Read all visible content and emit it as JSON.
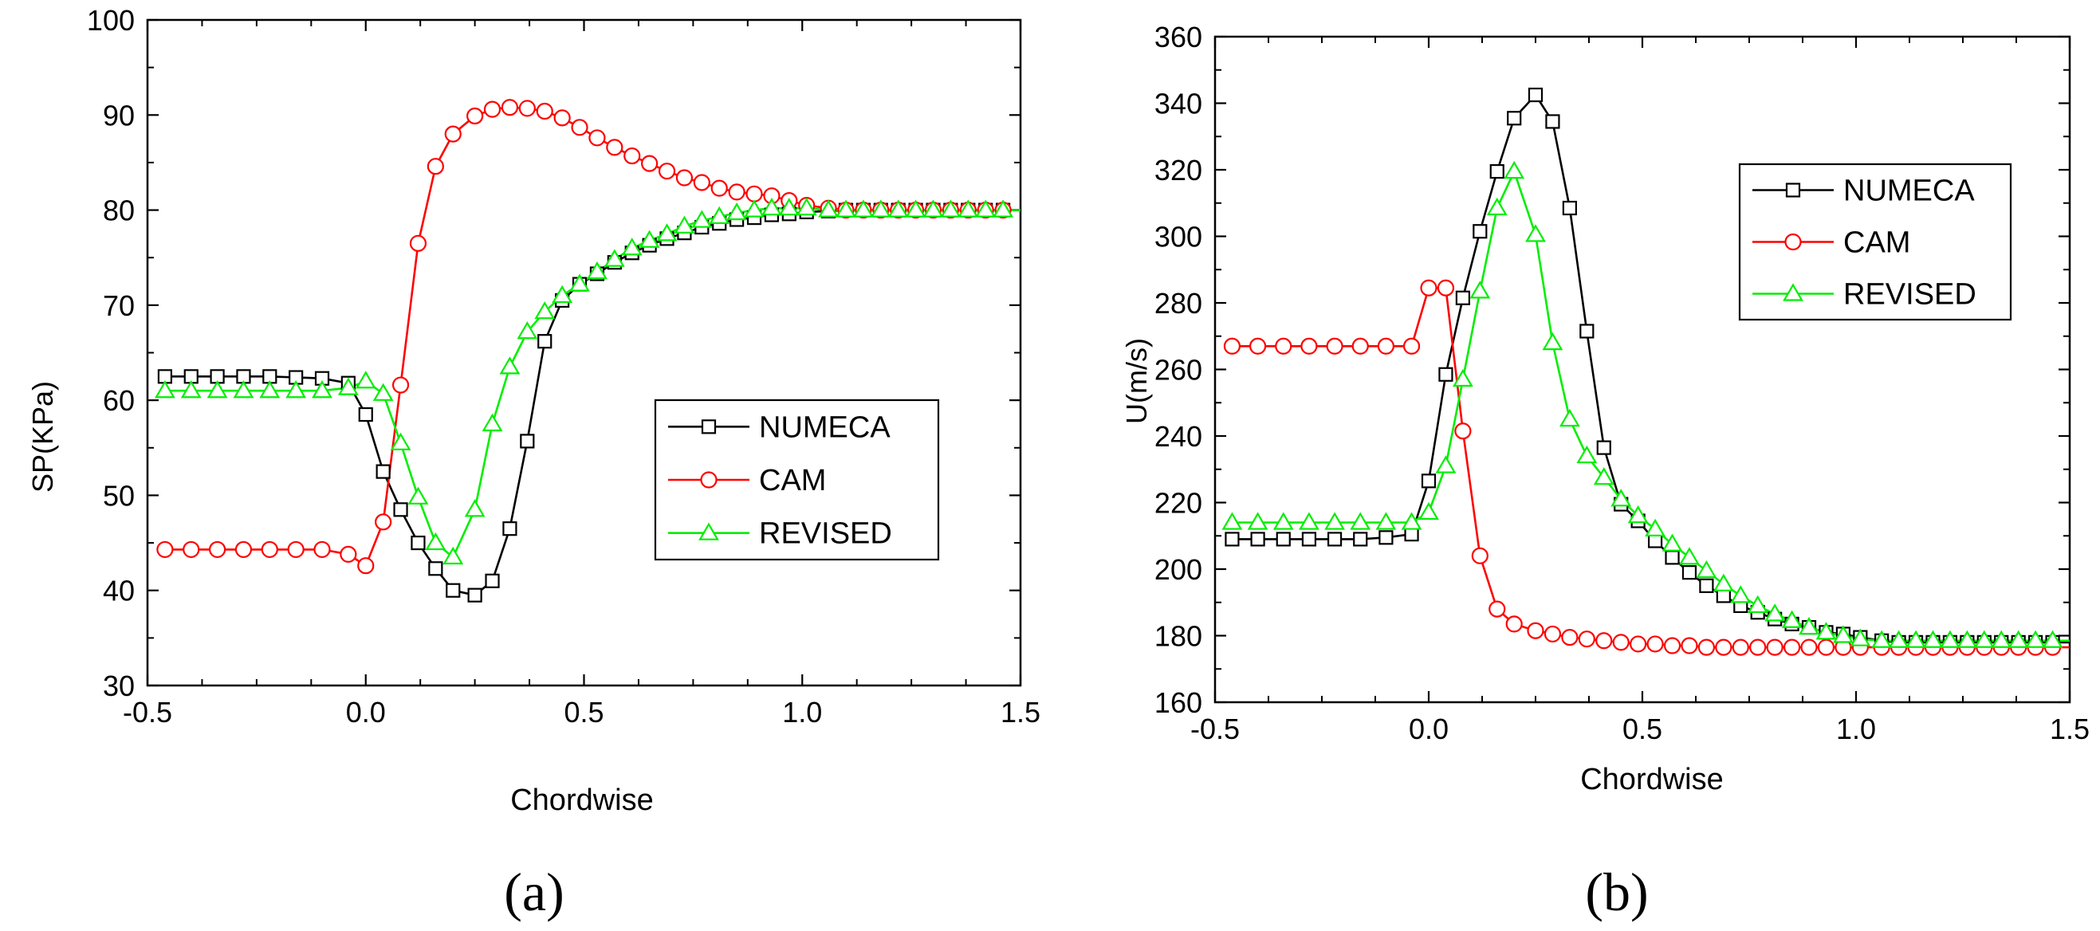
{
  "chart_data": [
    {
      "type": "line",
      "panel_label": "(a)",
      "xlabel": "Chordwise",
      "ylabel": "SP(KPa)",
      "xlim": [
        -0.5,
        1.5
      ],
      "ylim": [
        30,
        100
      ],
      "xticks": [
        -0.5,
        0.0,
        0.5,
        1.0,
        1.5
      ],
      "xtick_labels": [
        "-0.5",
        "0.0",
        "0.5",
        "1.0",
        "1.5"
      ],
      "yticks": [
        30,
        40,
        50,
        60,
        70,
        80,
        90,
        100
      ],
      "ytick_labels": [
        "30",
        "40",
        "50",
        "60",
        "70",
        "80",
        "90",
        "100"
      ],
      "grid": false,
      "legend_position": "right-middle",
      "series": [
        {
          "name": "NUMECA",
          "color": "#000000",
          "marker": "square",
          "x": [
            -0.46,
            -0.4,
            -0.34,
            -0.28,
            -0.22,
            -0.16,
            -0.1,
            -0.04,
            0.0,
            0.04,
            0.08,
            0.12,
            0.16,
            0.2,
            0.25,
            0.29,
            0.33,
            0.37,
            0.41,
            0.45,
            0.49,
            0.53,
            0.57,
            0.61,
            0.65,
            0.69,
            0.73,
            0.77,
            0.81,
            0.85,
            0.89,
            0.93,
            0.97,
            1.01,
            1.06,
            1.1,
            1.14,
            1.18,
            1.22,
            1.26,
            1.3,
            1.34,
            1.38,
            1.42,
            1.46,
            1.5
          ],
          "y": [
            62.5,
            62.5,
            62.5,
            62.5,
            62.5,
            62.4,
            62.3,
            61.8,
            58.5,
            52.5,
            48.5,
            45.0,
            42.3,
            40.0,
            39.5,
            41.0,
            46.5,
            55.7,
            66.2,
            70.5,
            72.2,
            73.3,
            74.5,
            75.5,
            76.3,
            77.0,
            77.6,
            78.2,
            78.6,
            79.0,
            79.2,
            79.5,
            79.6,
            79.8,
            79.9,
            80.0,
            80.0,
            80.0,
            80.0,
            80.0,
            80.0,
            80.0,
            80.0,
            80.0,
            80.0,
            80.0
          ]
        },
        {
          "name": "CAM",
          "color": "#ff0000",
          "marker": "circle",
          "x": [
            -0.46,
            -0.4,
            -0.34,
            -0.28,
            -0.22,
            -0.16,
            -0.1,
            -0.04,
            0.0,
            0.04,
            0.08,
            0.12,
            0.16,
            0.2,
            0.25,
            0.29,
            0.33,
            0.37,
            0.41,
            0.45,
            0.49,
            0.53,
            0.57,
            0.61,
            0.65,
            0.69,
            0.73,
            0.77,
            0.81,
            0.85,
            0.89,
            0.93,
            0.97,
            1.01,
            1.06,
            1.1,
            1.14,
            1.18,
            1.22,
            1.26,
            1.3,
            1.34,
            1.38,
            1.42,
            1.46,
            1.5
          ],
          "y": [
            44.3,
            44.3,
            44.3,
            44.3,
            44.3,
            44.3,
            44.3,
            43.8,
            42.6,
            47.2,
            61.6,
            76.5,
            84.6,
            88.0,
            89.9,
            90.6,
            90.8,
            90.7,
            90.4,
            89.7,
            88.7,
            87.6,
            86.6,
            85.7,
            84.9,
            84.1,
            83.4,
            82.9,
            82.3,
            81.9,
            81.7,
            81.5,
            81.0,
            80.5,
            80.2,
            80.0,
            80.0,
            80.0,
            80.0,
            80.0,
            80.0,
            80.0,
            80.0,
            80.0,
            80.0,
            80.0
          ]
        },
        {
          "name": "REVISED",
          "color": "#00ee00",
          "marker": "triangle",
          "x": [
            -0.46,
            -0.4,
            -0.34,
            -0.28,
            -0.22,
            -0.16,
            -0.1,
            -0.04,
            0.0,
            0.04,
            0.08,
            0.12,
            0.16,
            0.2,
            0.25,
            0.29,
            0.33,
            0.37,
            0.41,
            0.45,
            0.49,
            0.53,
            0.57,
            0.61,
            0.65,
            0.69,
            0.73,
            0.77,
            0.81,
            0.85,
            0.89,
            0.93,
            0.97,
            1.01,
            1.06,
            1.1,
            1.14,
            1.18,
            1.22,
            1.26,
            1.3,
            1.34,
            1.38,
            1.42,
            1.46,
            1.5
          ],
          "y": [
            61.0,
            61.0,
            61.0,
            61.0,
            61.0,
            61.0,
            61.0,
            61.3,
            62.0,
            60.7,
            55.5,
            49.8,
            45.0,
            43.5,
            48.5,
            57.5,
            63.5,
            67.2,
            69.3,
            71.0,
            72.2,
            73.5,
            74.8,
            76.0,
            76.8,
            77.5,
            78.3,
            78.9,
            79.3,
            79.7,
            80.0,
            80.2,
            80.2,
            80.2,
            80.0,
            80.0,
            80.0,
            80.0,
            80.0,
            80.0,
            80.0,
            80.0,
            80.0,
            80.0,
            80.0,
            80.0
          ]
        }
      ]
    },
    {
      "type": "line",
      "panel_label": "(b)",
      "xlabel": "Chordwise",
      "ylabel": "U(m/s)",
      "xlim": [
        -0.5,
        1.5
      ],
      "ylim": [
        160,
        360
      ],
      "xticks": [
        -0.5,
        0.0,
        0.5,
        1.0,
        1.5
      ],
      "xtick_labels": [
        "-0.5",
        "0.0",
        "0.5",
        "1.0",
        "1.5"
      ],
      "yticks": [
        160,
        180,
        200,
        220,
        240,
        260,
        280,
        300,
        320,
        340,
        360
      ],
      "ytick_labels": [
        "160",
        "180",
        "200",
        "220",
        "240",
        "260",
        "280",
        "300",
        "320",
        "340",
        "360"
      ],
      "grid": false,
      "legend_position": "top-right",
      "series": [
        {
          "name": "NUMECA",
          "color": "#000000",
          "marker": "square",
          "x": [
            -0.46,
            -0.4,
            -0.34,
            -0.28,
            -0.22,
            -0.16,
            -0.1,
            -0.04,
            0.0,
            0.04,
            0.08,
            0.12,
            0.16,
            0.2,
            0.25,
            0.29,
            0.33,
            0.37,
            0.41,
            0.45,
            0.49,
            0.53,
            0.57,
            0.61,
            0.65,
            0.69,
            0.73,
            0.77,
            0.81,
            0.85,
            0.89,
            0.93,
            0.97,
            1.01,
            1.06,
            1.1,
            1.14,
            1.18,
            1.22,
            1.26,
            1.3,
            1.34,
            1.38,
            1.42,
            1.46,
            1.5
          ],
          "y": [
            209,
            209,
            209,
            209,
            209,
            209,
            209.5,
            210.5,
            226.5,
            258.5,
            281.5,
            301.5,
            319.5,
            335.5,
            342.5,
            334.5,
            308.5,
            271.5,
            236.5,
            219.5,
            214.5,
            208.5,
            203.5,
            199,
            195,
            192,
            189,
            187,
            185,
            183.5,
            182.5,
            181,
            180.5,
            179.5,
            178.5,
            178,
            178,
            178,
            178,
            178,
            178,
            178,
            178,
            178,
            178,
            178
          ]
        },
        {
          "name": "CAM",
          "color": "#ff0000",
          "marker": "circle",
          "x": [
            -0.46,
            -0.4,
            -0.34,
            -0.28,
            -0.22,
            -0.16,
            -0.1,
            -0.04,
            0.0,
            0.04,
            0.08,
            0.12,
            0.16,
            0.2,
            0.25,
            0.29,
            0.33,
            0.37,
            0.41,
            0.45,
            0.49,
            0.53,
            0.57,
            0.61,
            0.65,
            0.69,
            0.73,
            0.77,
            0.81,
            0.85,
            0.89,
            0.93,
            0.97,
            1.01,
            1.06,
            1.1,
            1.14,
            1.18,
            1.22,
            1.26,
            1.3,
            1.34,
            1.38,
            1.42,
            1.46,
            1.5
          ],
          "y": [
            267,
            267,
            267,
            267,
            267,
            267,
            267,
            267,
            284.5,
            284.5,
            241.5,
            204,
            188,
            183.5,
            181.5,
            180.5,
            179.5,
            179,
            178.5,
            178,
            177.5,
            177.5,
            177,
            177,
            176.5,
            176.5,
            176.5,
            176.5,
            176.5,
            176.5,
            176.5,
            176.5,
            176.5,
            176.5,
            176.5,
            176.5,
            176.5,
            176.5,
            176.5,
            176.5,
            176.5,
            176.5,
            176.5,
            176.5,
            176.5,
            176.5
          ]
        },
        {
          "name": "REVISED",
          "color": "#00ee00",
          "marker": "triangle",
          "x": [
            -0.46,
            -0.4,
            -0.34,
            -0.28,
            -0.22,
            -0.16,
            -0.1,
            -0.04,
            0.0,
            0.04,
            0.08,
            0.12,
            0.16,
            0.2,
            0.25,
            0.29,
            0.33,
            0.37,
            0.41,
            0.45,
            0.49,
            0.53,
            0.57,
            0.61,
            0.65,
            0.69,
            0.73,
            0.77,
            0.81,
            0.85,
            0.89,
            0.93,
            0.97,
            1.01,
            1.06,
            1.1,
            1.14,
            1.18,
            1.22,
            1.26,
            1.3,
            1.34,
            1.38,
            1.42,
            1.46,
            1.5
          ],
          "y": [
            214,
            214,
            214,
            214,
            214,
            214,
            214,
            214,
            217,
            231,
            257,
            283.5,
            308.5,
            319.5,
            300.5,
            268,
            245,
            234,
            227.5,
            221,
            216,
            212,
            207.5,
            203.5,
            199.5,
            195.5,
            192,
            189,
            186.5,
            184.5,
            182.5,
            181,
            180,
            179,
            178.5,
            178.5,
            178.5,
            178.5,
            178.5,
            178.5,
            178.5,
            178.5,
            178.5,
            178.5,
            178.5,
            178.5
          ]
        }
      ]
    }
  ]
}
